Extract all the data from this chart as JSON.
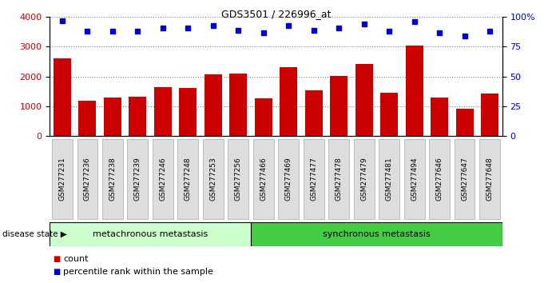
{
  "title": "GDS3501 / 226996_at",
  "samples": [
    "GSM277231",
    "GSM277236",
    "GSM277238",
    "GSM277239",
    "GSM277246",
    "GSM277248",
    "GSM277253",
    "GSM277256",
    "GSM277466",
    "GSM277469",
    "GSM277477",
    "GSM277478",
    "GSM277479",
    "GSM277481",
    "GSM277494",
    "GSM277646",
    "GSM277647",
    "GSM277648"
  ],
  "counts": [
    2600,
    1175,
    1290,
    1320,
    1630,
    1600,
    2075,
    2100,
    1270,
    2320,
    1530,
    2010,
    2420,
    1440,
    3030,
    1280,
    920,
    1420
  ],
  "percentiles": [
    97,
    88,
    88,
    88,
    91,
    91,
    93,
    89,
    87,
    93,
    89,
    91,
    94,
    88,
    96,
    87,
    84,
    88
  ],
  "group1_label": "metachronous metastasis",
  "group1_count": 8,
  "group2_label": "synchronous metastasis",
  "group2_count": 10,
  "bar_color": "#cc0000",
  "dot_color": "#0000cc",
  "group1_bg": "#ccffcc",
  "group2_bg": "#44cc44",
  "ylim_left": [
    0,
    4000
  ],
  "ylim_right": [
    0,
    100
  ],
  "yticks_left": [
    0,
    1000,
    2000,
    3000,
    4000
  ],
  "yticks_right": [
    0,
    25,
    50,
    75,
    100
  ],
  "legend_count_label": "count",
  "legend_pct_label": "percentile rank within the sample",
  "disease_state_label": "disease state",
  "tick_box_color": "#dddddd",
  "tick_box_edge": "#aaaaaa"
}
